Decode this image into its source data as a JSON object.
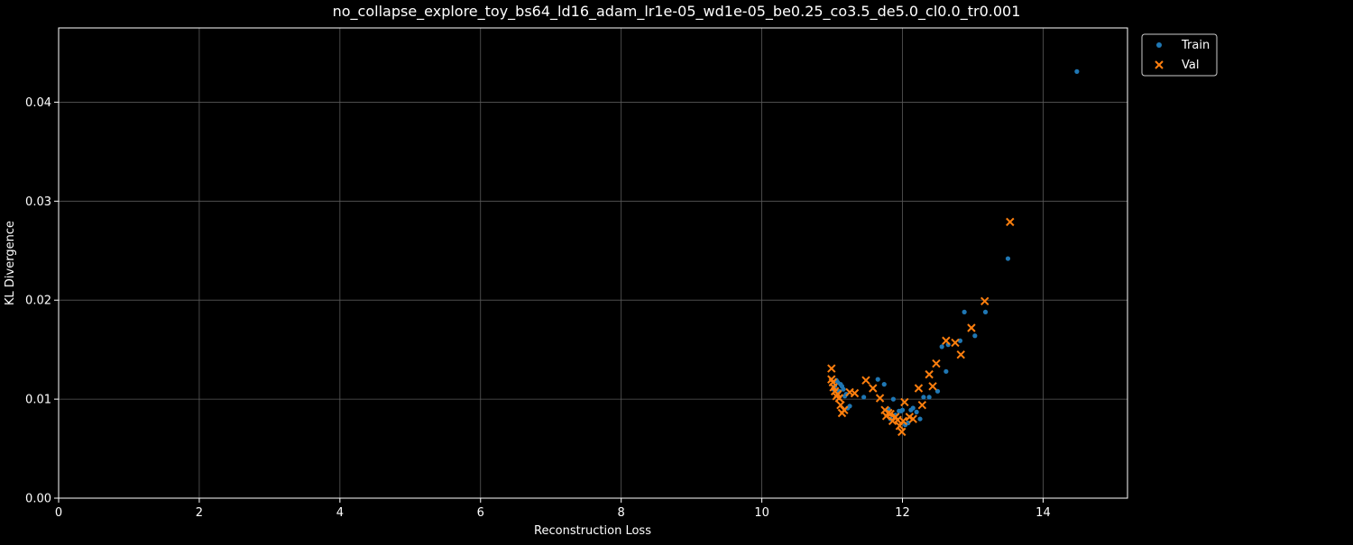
{
  "chart_data": {
    "type": "scatter",
    "title": "no_collapse_explore_toy_bs64_ld16_adam_lr1e-05_wd1e-05_be0.25_co3.5_de5.0_cl0.0_tr0.001",
    "xlabel": "Reconstruction Loss",
    "ylabel": "KL Divergence",
    "xlim": [
      0,
      15.2
    ],
    "ylim": [
      0,
      0.0475
    ],
    "x_ticks": [
      "0",
      "2",
      "4",
      "6",
      "8",
      "10",
      "12",
      "14"
    ],
    "y_ticks": [
      "0.00",
      "0.01",
      "0.02",
      "0.03",
      "0.04"
    ],
    "grid": true,
    "legend_position": "outside-top-right",
    "colors": {
      "background": "#000000",
      "axes": "#ffffff",
      "grid": "#5a5a5a",
      "train": "#1f77b4",
      "val": "#ff7f0e"
    },
    "series": [
      {
        "name": "Train",
        "marker": "dot",
        "points": [
          [
            14.48,
            0.0431
          ],
          [
            13.5,
            0.0242
          ],
          [
            13.18,
            0.0188
          ],
          [
            13.03,
            0.0164
          ],
          [
            12.88,
            0.0188
          ],
          [
            12.82,
            0.0159
          ],
          [
            12.65,
            0.0155
          ],
          [
            12.62,
            0.0128
          ],
          [
            12.56,
            0.0153
          ],
          [
            12.5,
            0.0108
          ],
          [
            12.38,
            0.0102
          ],
          [
            12.3,
            0.0102
          ],
          [
            12.25,
            0.008
          ],
          [
            12.2,
            0.0087
          ],
          [
            12.15,
            0.0091
          ],
          [
            12.12,
            0.0089
          ],
          [
            12.08,
            0.0076
          ],
          [
            12.04,
            0.0074
          ],
          [
            12.0,
            0.0089
          ],
          [
            11.98,
            0.0088
          ],
          [
            11.95,
            0.0088
          ],
          [
            11.9,
            0.0084
          ],
          [
            11.87,
            0.01
          ],
          [
            11.83,
            0.008
          ],
          [
            11.8,
            0.009
          ],
          [
            11.74,
            0.0115
          ],
          [
            11.65,
            0.012
          ],
          [
            11.45,
            0.0102
          ],
          [
            11.25,
            0.0093
          ],
          [
            11.22,
            0.0091
          ],
          [
            11.2,
            0.0105
          ],
          [
            11.18,
            0.0103
          ],
          [
            11.16,
            0.011
          ],
          [
            11.14,
            0.0113
          ],
          [
            11.12,
            0.0115
          ],
          [
            11.1,
            0.0108
          ],
          [
            11.08,
            0.0117
          ],
          [
            11.06,
            0.0119
          ],
          [
            11.04,
            0.0113
          ],
          [
            11.02,
            0.011
          ]
        ]
      },
      {
        "name": "Val",
        "marker": "x",
        "points": [
          [
            13.53,
            0.0279
          ],
          [
            13.17,
            0.0199
          ],
          [
            12.98,
            0.0172
          ],
          [
            12.83,
            0.0145
          ],
          [
            12.75,
            0.0157
          ],
          [
            12.62,
            0.0159
          ],
          [
            12.48,
            0.0136
          ],
          [
            12.43,
            0.0113
          ],
          [
            12.38,
            0.0125
          ],
          [
            12.28,
            0.0094
          ],
          [
            12.23,
            0.0111
          ],
          [
            12.15,
            0.008
          ],
          [
            12.1,
            0.0082
          ],
          [
            12.03,
            0.0097
          ],
          [
            12.01,
            0.0078
          ],
          [
            11.99,
            0.0067
          ],
          [
            11.96,
            0.0073
          ],
          [
            11.93,
            0.0079
          ],
          [
            11.9,
            0.0082
          ],
          [
            11.86,
            0.0078
          ],
          [
            11.83,
            0.0085
          ],
          [
            11.8,
            0.0086
          ],
          [
            11.77,
            0.0083
          ],
          [
            11.75,
            0.0089
          ],
          [
            11.68,
            0.0101
          ],
          [
            11.58,
            0.0111
          ],
          [
            11.48,
            0.0119
          ],
          [
            11.32,
            0.0106
          ],
          [
            11.25,
            0.0107
          ],
          [
            11.17,
            0.0089
          ],
          [
            11.14,
            0.0086
          ],
          [
            11.12,
            0.0094
          ],
          [
            11.1,
            0.0101
          ],
          [
            11.08,
            0.0105
          ],
          [
            11.06,
            0.0103
          ],
          [
            11.04,
            0.0108
          ],
          [
            11.02,
            0.0112
          ],
          [
            11.01,
            0.0117
          ],
          [
            10.99,
            0.012
          ],
          [
            10.99,
            0.0131
          ]
        ]
      }
    ]
  }
}
